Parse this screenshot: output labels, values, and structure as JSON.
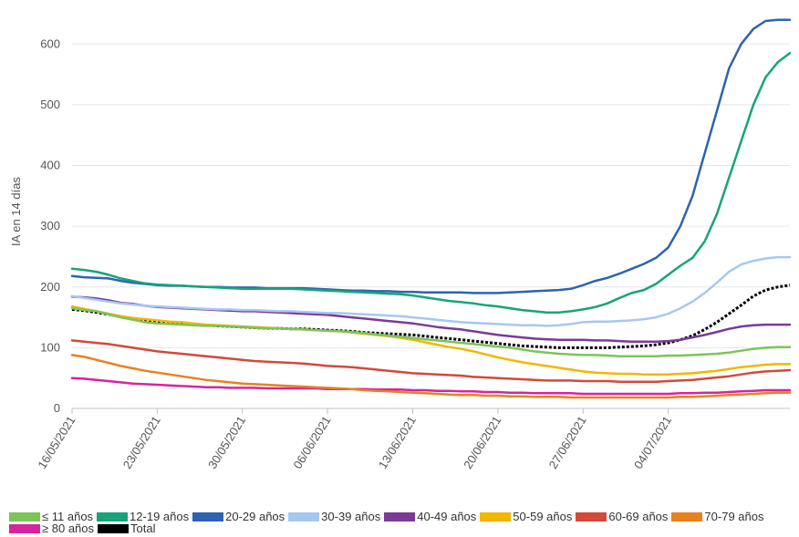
{
  "chart_data": {
    "type": "line",
    "title": "",
    "xlabel": "",
    "ylabel": "IA en 14 días",
    "ylim": [
      0,
      650
    ],
    "yticks": [
      0,
      100,
      200,
      300,
      400,
      500,
      600
    ],
    "x_start": "16/05/2021",
    "x_tick_labels": [
      "16/05/2021",
      "23/05/2021",
      "30/05/2021",
      "06/06/2021",
      "13/06/2021",
      "20/06/2021",
      "27/06/2021",
      "04/07/2021"
    ],
    "x_tick_index": [
      0,
      7,
      14,
      21,
      28,
      35,
      42,
      49
    ],
    "grid": "horizontal",
    "legend_position": "bottom",
    "series": [
      {
        "name": "≤ 11 años",
        "color": "#7cc45a",
        "dashed": false,
        "values": [
          165,
          162,
          160,
          155,
          150,
          146,
          142,
          140,
          139,
          138,
          137,
          136,
          136,
          135,
          134,
          133,
          132,
          132,
          131,
          130,
          129,
          128,
          127,
          126,
          124,
          122,
          120,
          118,
          116,
          114,
          112,
          110,
          108,
          106,
          104,
          102,
          100,
          97,
          94,
          92,
          90,
          89,
          88,
          88,
          87,
          86,
          86,
          86,
          86,
          87,
          87,
          88,
          89,
          90,
          92,
          95,
          98,
          100,
          101,
          101
        ]
      },
      {
        "name": "12-19 años",
        "color": "#17a47a",
        "dashed": false,
        "values": [
          230,
          228,
          225,
          220,
          214,
          210,
          206,
          204,
          203,
          202,
          201,
          200,
          199,
          198,
          197,
          197,
          197,
          197,
          197,
          196,
          195,
          194,
          193,
          192,
          191,
          190,
          189,
          188,
          186,
          183,
          180,
          177,
          175,
          173,
          170,
          168,
          165,
          162,
          160,
          158,
          158,
          160,
          163,
          167,
          173,
          182,
          190,
          195,
          205,
          220,
          235,
          248,
          275,
          320,
          380,
          440,
          500,
          545,
          570,
          585
        ]
      },
      {
        "name": "20-29 años",
        "color": "#2e63b0",
        "dashed": false,
        "values": [
          218,
          216,
          215,
          214,
          210,
          207,
          205,
          203,
          202,
          202,
          201,
          200,
          200,
          199,
          199,
          199,
          198,
          198,
          198,
          198,
          197,
          196,
          195,
          194,
          194,
          193,
          193,
          192,
          192,
          191,
          191,
          191,
          191,
          190,
          190,
          190,
          191,
          192,
          193,
          194,
          195,
          197,
          203,
          210,
          215,
          222,
          230,
          238,
          248,
          265,
          300,
          350,
          420,
          490,
          560,
          600,
          625,
          638,
          640,
          640
        ]
      },
      {
        "name": "30-39 años",
        "color": "#a6c8f0",
        "dashed": false,
        "values": [
          185,
          182,
          179,
          176,
          173,
          171,
          169,
          168,
          167,
          166,
          165,
          164,
          163,
          163,
          162,
          162,
          161,
          160,
          160,
          159,
          158,
          157,
          157,
          156,
          155,
          154,
          153,
          152,
          150,
          148,
          146,
          144,
          142,
          141,
          140,
          139,
          138,
          137,
          137,
          136,
          137,
          139,
          142,
          143,
          143,
          144,
          145,
          147,
          150,
          156,
          165,
          176,
          190,
          207,
          225,
          237,
          243,
          247,
          249,
          249
        ]
      },
      {
        "name": "40-49 años",
        "color": "#7b3a96",
        "dashed": false,
        "values": [
          184,
          183,
          181,
          178,
          174,
          172,
          169,
          167,
          166,
          165,
          164,
          163,
          162,
          161,
          160,
          160,
          159,
          158,
          157,
          156,
          155,
          154,
          152,
          150,
          148,
          146,
          144,
          142,
          140,
          137,
          134,
          132,
          130,
          127,
          124,
          121,
          119,
          117,
          115,
          114,
          113,
          113,
          113,
          112,
          112,
          111,
          110,
          110,
          110,
          111,
          113,
          117,
          121,
          126,
          131,
          135,
          137,
          138,
          138,
          138
        ]
      },
      {
        "name": "50-59 años",
        "color": "#f2b700",
        "dashed": false,
        "values": [
          168,
          164,
          160,
          156,
          152,
          149,
          147,
          145,
          143,
          142,
          140,
          138,
          137,
          136,
          135,
          134,
          133,
          132,
          131,
          130,
          129,
          128,
          127,
          125,
          123,
          121,
          119,
          116,
          113,
          109,
          105,
          101,
          98,
          94,
          89,
          84,
          80,
          76,
          73,
          70,
          67,
          64,
          61,
          59,
          58,
          57,
          57,
          56,
          56,
          56,
          57,
          58,
          60,
          62,
          65,
          68,
          70,
          72,
          73,
          73
        ]
      },
      {
        "name": "60-69 años",
        "color": "#d14a3a",
        "dashed": false,
        "values": [
          112,
          110,
          108,
          106,
          103,
          100,
          97,
          94,
          92,
          90,
          88,
          86,
          84,
          82,
          80,
          78,
          77,
          76,
          75,
          74,
          72,
          70,
          69,
          68,
          66,
          64,
          62,
          60,
          58,
          57,
          56,
          55,
          54,
          52,
          51,
          50,
          49,
          48,
          47,
          46,
          46,
          46,
          45,
          45,
          45,
          44,
          44,
          44,
          44,
          45,
          46,
          47,
          49,
          51,
          53,
          56,
          59,
          61,
          62,
          63
        ]
      },
      {
        "name": "70-79 años",
        "color": "#e8821f",
        "dashed": false,
        "values": [
          88,
          85,
          80,
          75,
          70,
          66,
          62,
          59,
          56,
          53,
          50,
          47,
          45,
          43,
          41,
          40,
          39,
          38,
          37,
          36,
          35,
          34,
          33,
          32,
          30,
          29,
          28,
          27,
          26,
          25,
          24,
          23,
          22,
          22,
          21,
          21,
          20,
          20,
          19,
          19,
          19,
          18,
          18,
          18,
          18,
          18,
          18,
          18,
          18,
          18,
          19,
          19,
          20,
          21,
          22,
          23,
          24,
          25,
          26,
          26
        ]
      },
      {
        "name": "≥ 80 años",
        "color": "#d6249f",
        "dashed": false,
        "values": [
          50,
          49,
          47,
          45,
          43,
          41,
          40,
          39,
          38,
          37,
          36,
          35,
          35,
          34,
          34,
          34,
          33,
          33,
          33,
          33,
          33,
          32,
          32,
          32,
          32,
          31,
          31,
          31,
          30,
          30,
          29,
          29,
          28,
          28,
          27,
          27,
          26,
          26,
          25,
          25,
          25,
          25,
          24,
          24,
          24,
          24,
          24,
          24,
          24,
          24,
          25,
          25,
          26,
          26,
          27,
          28,
          29,
          30,
          30,
          30
        ]
      },
      {
        "name": "Total",
        "color": "#000000",
        "dashed": true,
        "values": [
          163,
          161,
          158,
          155,
          151,
          147,
          144,
          142,
          140,
          139,
          138,
          137,
          136,
          135,
          134,
          133,
          132,
          132,
          131,
          131,
          130,
          129,
          128,
          127,
          125,
          124,
          123,
          122,
          121,
          119,
          117,
          115,
          113,
          111,
          109,
          107,
          105,
          103,
          102,
          101,
          100,
          100,
          100,
          100,
          100,
          101,
          102,
          103,
          105,
          108,
          113,
          120,
          130,
          142,
          156,
          170,
          185,
          195,
          200,
          203
        ]
      }
    ]
  }
}
